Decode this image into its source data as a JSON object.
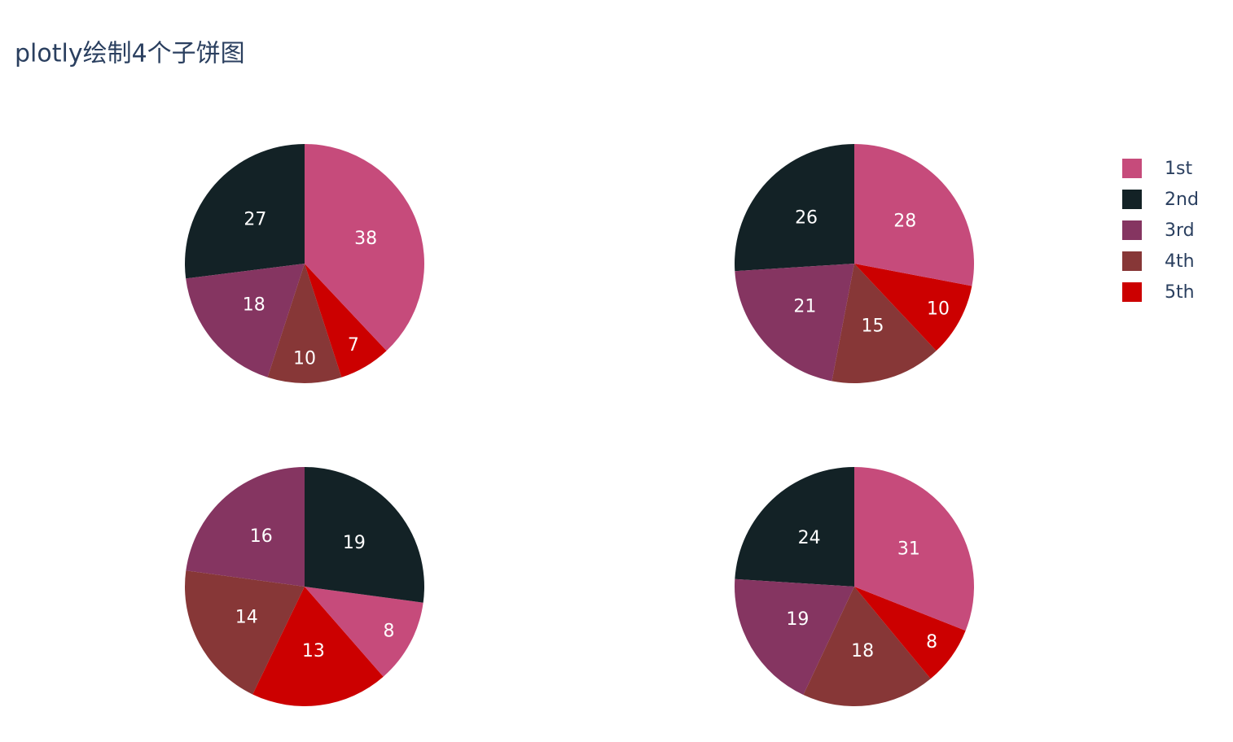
{
  "title": "plotly绘制4个子饼图",
  "chart_data": [
    {
      "type": "pie",
      "sort": true,
      "categories": [
        "1st",
        "2nd",
        "3rd",
        "4th",
        "5th"
      ],
      "values": [
        38,
        27,
        18,
        10,
        7
      ],
      "colors": [
        "#c64b7b",
        "#132226",
        "#853561",
        "#873737",
        "#cc0000"
      ],
      "legend": "right"
    },
    {
      "type": "pie",
      "sort": true,
      "categories": [
        "1st",
        "2nd",
        "3rd",
        "4th",
        "5th"
      ],
      "values": [
        28,
        26,
        21,
        15,
        10
      ],
      "colors": [
        "#c64b7b",
        "#132226",
        "#853561",
        "#873737",
        "#cc0000"
      ]
    },
    {
      "type": "pie",
      "sort": true,
      "categories": [
        "1st",
        "2nd",
        "3rd",
        "4th",
        "5th"
      ],
      "values": [
        8,
        19,
        16,
        14,
        13
      ],
      "colors": [
        "#c64b7b",
        "#132226",
        "#853561",
        "#873737",
        "#cc0000"
      ]
    },
    {
      "type": "pie",
      "sort": true,
      "categories": [
        "1st",
        "2nd",
        "3rd",
        "4th",
        "5th"
      ],
      "values": [
        31,
        24,
        19,
        18,
        8
      ],
      "colors": [
        "#c64b7b",
        "#132226",
        "#853561",
        "#873737",
        "#cc0000"
      ]
    }
  ]
}
